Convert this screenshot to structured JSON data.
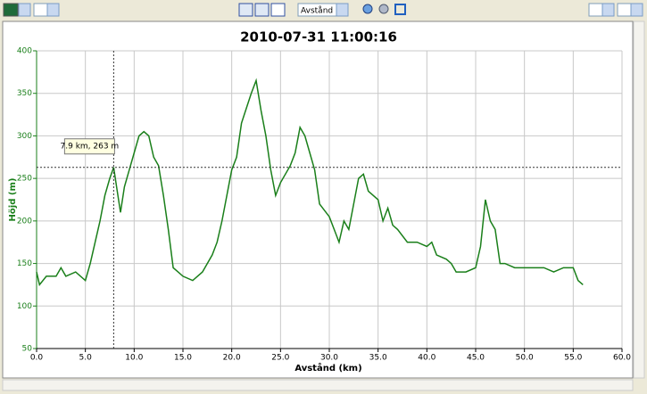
{
  "toolbar": {
    "mode": "Avstånd"
  },
  "chart_data": {
    "type": "line",
    "title": "2010-07-31 11:00:16",
    "x_label": "Avstånd (km)",
    "y_label": "Höjd (m)",
    "color": "#1a7f1a",
    "grid": true,
    "xlim": [
      0,
      60
    ],
    "xticks": [
      {
        "value": 0,
        "label": "0.0"
      },
      {
        "value": 5,
        "label": "5.0"
      },
      {
        "value": 10,
        "label": "10.0"
      },
      {
        "value": 15,
        "label": "15.0"
      },
      {
        "value": 20,
        "label": "20.0"
      },
      {
        "value": 25,
        "label": "25.0"
      },
      {
        "value": 30,
        "label": "30.0"
      },
      {
        "value": 35,
        "label": "35.0"
      },
      {
        "value": 40,
        "label": "40.0"
      },
      {
        "value": 45,
        "label": "45.0"
      },
      {
        "value": 50,
        "label": "50.0"
      },
      {
        "value": 55,
        "label": "55.0"
      },
      {
        "value": 60,
        "label": "60.0"
      }
    ],
    "ylim": [
      50,
      400
    ],
    "yticks": [
      50,
      100,
      150,
      200,
      250,
      300,
      350,
      400
    ],
    "x": [
      0,
      0.3,
      1,
      2,
      2.5,
      3,
      4,
      5,
      5.5,
      6,
      6.5,
      7,
      7.5,
      7.9,
      8.2,
      8.6,
      9,
      9.5,
      10,
      10.5,
      11,
      11.5,
      12,
      12.5,
      13,
      13.5,
      14,
      14.5,
      15,
      16,
      17,
      18,
      18.5,
      19,
      19.5,
      20,
      20.5,
      21,
      22,
      22.5,
      23,
      23.5,
      24,
      24.5,
      25,
      26,
      26.5,
      27,
      27.5,
      28,
      28.5,
      29,
      30,
      30.5,
      31,
      31.5,
      32,
      32.5,
      33,
      33.5,
      34,
      35,
      35.5,
      36,
      36.5,
      37,
      38,
      39,
      40,
      40.5,
      41,
      42,
      42.5,
      43,
      44,
      45,
      45.5,
      46,
      46.5,
      47,
      47.5,
      48,
      49,
      50,
      51,
      52,
      53,
      54,
      55,
      55.5,
      56
    ],
    "values": [
      140,
      125,
      135,
      135,
      145,
      135,
      140,
      130,
      150,
      175,
      200,
      230,
      250,
      263,
      240,
      210,
      240,
      260,
      280,
      300,
      305,
      300,
      275,
      265,
      230,
      190,
      145,
      140,
      135,
      130,
      140,
      160,
      175,
      200,
      230,
      260,
      275,
      315,
      350,
      365,
      330,
      300,
      260,
      230,
      245,
      265,
      280,
      310,
      300,
      280,
      260,
      220,
      205,
      190,
      175,
      200,
      190,
      220,
      250,
      255,
      235,
      225,
      200,
      215,
      195,
      190,
      175,
      175,
      170,
      175,
      160,
      155,
      150,
      140,
      140,
      145,
      170,
      225,
      200,
      190,
      150,
      150,
      145,
      145,
      145,
      145,
      140,
      145,
      145,
      130,
      125
    ],
    "annotation": {
      "text": "7.9 km, 263 m",
      "x": 7.9,
      "y": 263
    }
  }
}
